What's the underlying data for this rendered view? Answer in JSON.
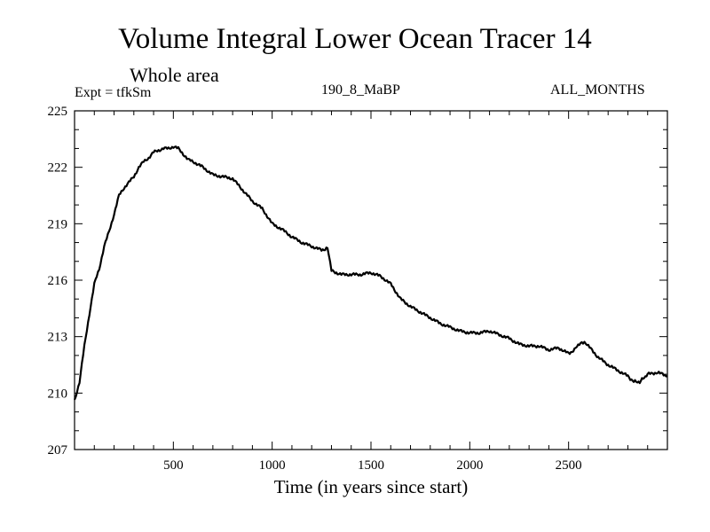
{
  "header": {
    "title": "Volume Integral Lower Ocean Tracer 14",
    "subtitle": "Whole area",
    "experiment": "Expt = tfkSm",
    "run_label": "190_8_MaBP",
    "period_label": "ALL_MONTHS"
  },
  "chart_data": {
    "type": "line",
    "title": "Volume Integral Lower Ocean Tracer 14",
    "subtitle": "Whole area",
    "xlabel": "Time (in years since start)",
    "ylabel": "",
    "xlim": [
      0,
      3000
    ],
    "ylim": [
      207,
      225
    ],
    "x_ticks": [
      500,
      1000,
      1500,
      2000,
      2500
    ],
    "y_ticks": [
      207,
      210,
      213,
      216,
      219,
      222,
      225
    ],
    "grid": false,
    "line_color": "#000000",
    "series": [
      {
        "name": "Lower Ocean Tracer 14",
        "x": [
          0,
          25,
          50,
          75,
          100,
          125,
          150,
          175,
          200,
          225,
          250,
          275,
          300,
          325,
          350,
          375,
          400,
          425,
          450,
          475,
          500,
          525,
          550,
          575,
          600,
          650,
          700,
          750,
          800,
          850,
          900,
          950,
          1000,
          1050,
          1100,
          1150,
          1200,
          1250,
          1280,
          1300,
          1350,
          1400,
          1450,
          1500,
          1550,
          1600,
          1650,
          1700,
          1750,
          1800,
          1850,
          1900,
          1950,
          2000,
          2050,
          2100,
          2150,
          2200,
          2250,
          2300,
          2350,
          2400,
          2450,
          2500,
          2530,
          2560,
          2580,
          2600,
          2650,
          2700,
          2750,
          2800,
          2830,
          2860,
          2900,
          2950,
          3000
        ],
        "values": [
          209.6,
          210.6,
          212.5,
          214.2,
          215.8,
          216.6,
          217.8,
          218.6,
          219.5,
          220.5,
          220.9,
          221.2,
          221.5,
          222.0,
          222.3,
          222.5,
          222.8,
          222.9,
          223.0,
          223.0,
          223.1,
          223.0,
          222.7,
          222.4,
          222.3,
          222.0,
          221.6,
          221.5,
          221.4,
          220.8,
          220.2,
          219.8,
          219.0,
          218.7,
          218.3,
          218.0,
          217.8,
          217.6,
          217.7,
          216.5,
          216.3,
          216.3,
          216.3,
          216.4,
          216.2,
          215.8,
          215.0,
          214.6,
          214.3,
          214.0,
          213.7,
          213.5,
          213.3,
          213.2,
          213.2,
          213.3,
          213.1,
          212.9,
          212.6,
          212.5,
          212.5,
          212.3,
          212.4,
          212.1,
          212.3,
          212.7,
          212.7,
          212.5,
          211.9,
          211.5,
          211.2,
          210.9,
          210.6,
          210.6,
          211.0,
          211.1,
          210.9
        ]
      }
    ]
  }
}
